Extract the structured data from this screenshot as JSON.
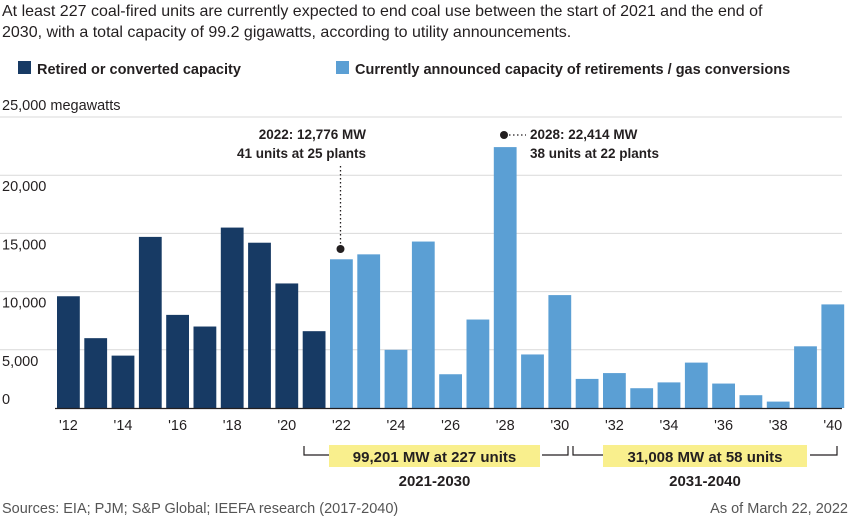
{
  "title_lines": [
    "At least 227 coal-fired units are currently expected to end coal use between the start of 2021 and the end of",
    "2030, with a total capacity of 99.2 gigawatts, according to utility announcements."
  ],
  "legend": {
    "retired": "Retired or converted capacity",
    "announced": "Currently announced capacity of retirements / gas conversions"
  },
  "colors": {
    "retired": "#173a64",
    "announced": "#5b9fd4",
    "highlight": "#f9ef8d",
    "gridline": "#d9d9d9",
    "axis": "#231f20"
  },
  "ylabel_unit": "25,000 megawatts",
  "annotations": {
    "a2022": {
      "line1": "2022: 12,776 MW",
      "line2": "41 units at 25 plants"
    },
    "a2028": {
      "line1": "2028: 22,414 MW",
      "line2": "38 units at 22 plants"
    }
  },
  "summaries": {
    "s1": {
      "value": "99,201 MW  at 227 units",
      "period": "2021-2030"
    },
    "s2": {
      "value": "31,008 MW  at 58 units",
      "period": "2031-2040"
    }
  },
  "footer": {
    "sources": "Sources: EIA; PJM; S&P Global; IEEFA research (2017-2040)",
    "date": "As of March 22, 2022"
  },
  "chart_data": {
    "type": "bar",
    "categories": [
      "2012",
      "2013",
      "2014",
      "2015",
      "2016",
      "2017",
      "2018",
      "2019",
      "2020",
      "2021",
      "2022",
      "2023",
      "2024",
      "2025",
      "2026",
      "2027",
      "2028",
      "2029",
      "2030",
      "2031",
      "2032",
      "2033",
      "2034",
      "2035",
      "2036",
      "2037",
      "2038",
      "2039",
      "2040"
    ],
    "series": [
      {
        "name": "Retired or converted capacity",
        "values": [
          9600,
          6000,
          4500,
          14700,
          8000,
          7000,
          15500,
          14200,
          10700,
          6600,
          null,
          null,
          null,
          null,
          null,
          null,
          null,
          null,
          null,
          null,
          null,
          null,
          null,
          null,
          null,
          null,
          null,
          null,
          null
        ]
      },
      {
        "name": "Currently announced capacity of retirements / gas conversions",
        "values": [
          null,
          null,
          null,
          null,
          null,
          null,
          null,
          null,
          null,
          null,
          12776,
          13200,
          5000,
          14300,
          2900,
          7600,
          22414,
          4600,
          9700,
          2500,
          3000,
          1700,
          2200,
          3900,
          2100,
          1100,
          550,
          5300,
          8900
        ]
      }
    ],
    "xtick_labels": [
      "'12",
      "'14",
      "'16",
      "'18",
      "'20",
      "'22",
      "'24",
      "'26",
      "'28",
      "'30",
      "'32",
      "'34",
      "'36",
      "'38",
      "'40"
    ],
    "ytick_labels": [
      "0",
      "5,000",
      "10,000",
      "15,000",
      "20,000"
    ],
    "ylim": [
      0,
      25000
    ],
    "grid": true,
    "legend_position": "top"
  }
}
